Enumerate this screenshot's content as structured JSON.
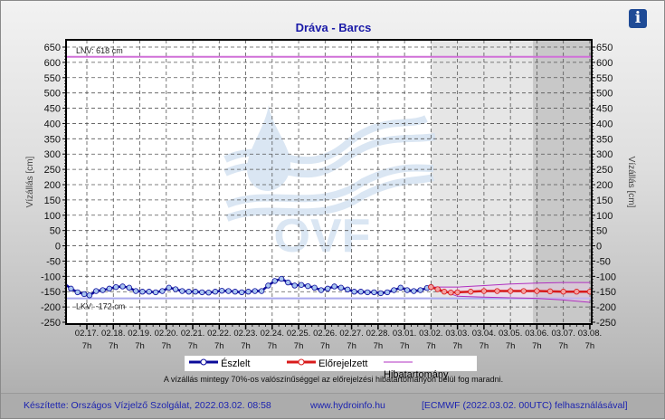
{
  "header": {
    "title": "Dráva - Barcs",
    "info_icon": "info-icon",
    "info_label": "i"
  },
  "axes": {
    "left_label": "Vízállás [cm]",
    "right_label": "Vízállás [cm]",
    "y_ticks": [
      "650",
      "600",
      "550",
      "500",
      "450",
      "400",
      "350",
      "300",
      "250",
      "200",
      "150",
      "100",
      "50",
      "0",
      "-50",
      "-100",
      "-150",
      "-200",
      "-250"
    ]
  },
  "reference_lines": {
    "lnv": {
      "label": "LNV: 618 cm",
      "value": 618,
      "color": "#d070d8"
    },
    "lkv": {
      "label": "LKV: -172 cm",
      "value": -172,
      "color": "#a8a8ee"
    }
  },
  "legend": {
    "observed": "Észlelt",
    "forecast": "Előrejelzett",
    "error_band": "Hibatartomány"
  },
  "note": "A vízállás mintegy 70%-os valószínűséggel az előrejelzési hibatartományon belül fog maradni.",
  "footer": {
    "made_by": "Készítette: Országos Vízjelző Szolgálat, 2022.03.02. 08:58",
    "website": "www.hydroinfo.hu",
    "source": "[ECMWF (2022.03.02. 00UTC) felhasználásával]"
  },
  "watermark": "OVF",
  "colors": {
    "observed": "#0a0a9a",
    "observed_marker": "#a8c4f0",
    "forecast": "#d81a1a",
    "forecast_marker": "#f4a0a0",
    "error_band": "#b030c0",
    "title": "#1a1aa8",
    "footer_text": "#1c23b0"
  },
  "chart_data": {
    "type": "line",
    "title": "Dráva - Barcs",
    "xlabel": "",
    "ylabel": "Vízállás [cm]",
    "ylim": [
      -250,
      650
    ],
    "grid": true,
    "legend_position": "bottom",
    "categories": [
      "02.17. 7h",
      "02.18. 7h",
      "02.19. 7h",
      "02.20. 7h",
      "02.21. 7h",
      "02.22. 7h",
      "02.23. 7h",
      "02.24. 7h",
      "02.25. 7h",
      "02.26. 7h",
      "02.27. 7h",
      "02.28. 7h",
      "03.01. 7h",
      "03.02. 7h",
      "03.03. 7h",
      "03.04. 7h",
      "03.05. 7h",
      "03.06. 7h",
      "03.07. 7h",
      "03.08. 7h"
    ],
    "x_tick_dates": [
      "02.17.",
      "02.18.",
      "02.19.",
      "02.20.",
      "02.21.",
      "02.22.",
      "02.23.",
      "02.24.",
      "02.25.",
      "02.26.",
      "02.27.",
      "02.28.",
      "03.01.",
      "03.02.",
      "03.03.",
      "03.04.",
      "03.05.",
      "03.06.",
      "03.07.",
      "03.08."
    ],
    "x_tick_hour": "7h",
    "series": [
      {
        "name": "Észlelt",
        "x_days": [
          -0.8,
          -0.6,
          -0.35,
          -0.1,
          0.1,
          0.35,
          0.6,
          0.85,
          1.1,
          1.35,
          1.6,
          1.85,
          2.1,
          2.35,
          2.6,
          2.85,
          3.1,
          3.35,
          3.6,
          3.85,
          4.1,
          4.35,
          4.6,
          4.85,
          5.1,
          5.35,
          5.6,
          5.85,
          6.1,
          6.35,
          6.6,
          6.85,
          7.1,
          7.35,
          7.6,
          7.85,
          8.1,
          8.35,
          8.6,
          8.85,
          9.1,
          9.35,
          9.6,
          9.85,
          10.1,
          10.35,
          10.6,
          10.85,
          11.1,
          11.35,
          11.6,
          11.85,
          12.1,
          12.35,
          12.6,
          12.85,
          13.0
        ],
        "values": [
          -128,
          -140,
          -152,
          -158,
          -162,
          -148,
          -145,
          -140,
          -135,
          -133,
          -137,
          -148,
          -150,
          -150,
          -152,
          -148,
          -137,
          -142,
          -148,
          -150,
          -150,
          -152,
          -153,
          -150,
          -147,
          -148,
          -150,
          -152,
          -150,
          -148,
          -148,
          -130,
          -115,
          -108,
          -120,
          -130,
          -128,
          -132,
          -137,
          -145,
          -140,
          -133,
          -137,
          -143,
          -150,
          -150,
          -152,
          -152,
          -155,
          -152,
          -145,
          -137,
          -145,
          -148,
          -145,
          -138,
          -135
        ]
      },
      {
        "name": "Előrejelzett",
        "x_days": [
          13.0,
          13.25,
          13.5,
          13.75,
          14.0,
          14.5,
          15.0,
          15.5,
          16.0,
          16.5,
          17.0,
          17.5,
          18.0,
          18.5,
          19.0
        ],
        "values": [
          -135,
          -142,
          -150,
          -153,
          -152,
          -150,
          -148,
          -148,
          -148,
          -148,
          -148,
          -149,
          -150,
          -150,
          -150
        ]
      },
      {
        "name": "Hibatartomány (felső)",
        "x_days": [
          13.0,
          14.0,
          15.0,
          16.0,
          17.0,
          18.0,
          19.0
        ],
        "values": [
          -135,
          -135,
          -130,
          -125,
          -122,
          -120,
          -120
        ]
      },
      {
        "name": "Hibatartomány (alsó)",
        "x_days": [
          13.0,
          14.0,
          15.0,
          16.0,
          17.0,
          18.0,
          19.0
        ],
        "values": [
          -135,
          -165,
          -168,
          -170,
          -172,
          -177,
          -185
        ]
      }
    ],
    "annotations": [
      "LNV: 618 cm",
      "LKV: -172 cm"
    ],
    "forecast_region_start": "03.02. 7h"
  }
}
